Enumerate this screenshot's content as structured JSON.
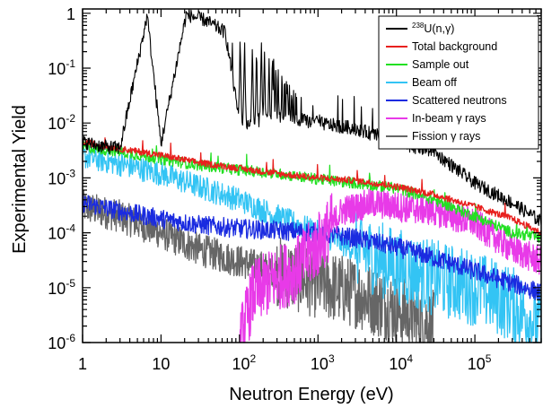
{
  "chart_data": {
    "type": "line",
    "xlabel": "Neutron Energy (eV)",
    "ylabel": "Experimental Yield",
    "xscale": "log",
    "yscale": "log",
    "xlim": [
      1,
      700000
    ],
    "ylim": [
      1e-06,
      1.2
    ],
    "x_tick_labels": [
      {
        "value": 1,
        "base": "1",
        "exp": ""
      },
      {
        "value": 10,
        "base": "10",
        "exp": ""
      },
      {
        "value": 100,
        "base": "10",
        "exp": "2"
      },
      {
        "value": 1000,
        "base": "10",
        "exp": "3"
      },
      {
        "value": 10000,
        "base": "10",
        "exp": "4"
      },
      {
        "value": 100000,
        "base": "10",
        "exp": "5"
      }
    ],
    "y_tick_labels": [
      {
        "value": 1,
        "base": "1",
        "exp": ""
      },
      {
        "value": 0.1,
        "base": "10",
        "exp": "-1"
      },
      {
        "value": 0.01,
        "base": "10",
        "exp": "-2"
      },
      {
        "value": 0.001,
        "base": "10",
        "exp": "-3"
      },
      {
        "value": 0.0001,
        "base": "10",
        "exp": "-4"
      },
      {
        "value": 1e-05,
        "base": "10",
        "exp": "-5"
      },
      {
        "value": 1e-06,
        "base": "10",
        "exp": "-6"
      }
    ],
    "legend_position": "top-right",
    "grid": false,
    "series": [
      {
        "key": "capture",
        "name_sup": "238",
        "name": "U(n,γ)",
        "color": "#000000",
        "x": [
          1,
          2,
          3,
          6.67,
          10,
          20.9,
          36.7,
          66,
          102,
          200,
          500,
          1000,
          3000,
          10000,
          30000,
          100000,
          300000,
          700000
        ],
        "y": [
          0.0045,
          0.0037,
          0.0035,
          0.9,
          0.0042,
          0.95,
          0.75,
          0.45,
          0.009,
          0.012,
          0.012,
          0.01,
          0.008,
          0.0045,
          0.003,
          0.0008,
          0.00035,
          0.00016
        ]
      },
      {
        "key": "total",
        "name": "Total background",
        "color": "#e8201e",
        "x": [
          1,
          3,
          10,
          30,
          100,
          300,
          1000,
          3000,
          10000,
          30000,
          100000,
          300000,
          700000
        ],
        "y": [
          0.0045,
          0.0034,
          0.0026,
          0.0019,
          0.0015,
          0.0012,
          0.001,
          0.0009,
          0.0007,
          0.0005,
          0.0003,
          0.00018,
          0.0001
        ]
      },
      {
        "key": "sample_out",
        "name": "Sample out",
        "color": "#22e022",
        "x": [
          1,
          3,
          10,
          30,
          100,
          300,
          1000,
          3000,
          10000,
          30000,
          100000,
          300000,
          700000
        ],
        "y": [
          0.0037,
          0.003,
          0.0022,
          0.0017,
          0.0014,
          0.0012,
          0.00095,
          0.0008,
          0.00065,
          0.0004,
          0.0002,
          0.0001,
          8e-05
        ]
      },
      {
        "key": "beam_off",
        "name": "Beam off",
        "color": "#33c4f4",
        "x": [
          1,
          3,
          10,
          30,
          100,
          300,
          1000,
          3000,
          10000,
          30000,
          100000,
          300000,
          700000
        ],
        "y": [
          0.0025,
          0.0018,
          0.0012,
          0.0007,
          0.0004,
          0.0002,
          0.0001,
          5e-05,
          2.5e-05,
          1.5e-05,
          1e-05,
          5e-06,
          2e-06
        ]
      },
      {
        "key": "scattered",
        "name": "Scattered neutrons",
        "color": "#1a2be0",
        "x": [
          1,
          3,
          10,
          30,
          100,
          300,
          1000,
          3000,
          10000,
          30000,
          100000,
          300000,
          700000
        ],
        "y": [
          0.00035,
          0.00025,
          0.00018,
          0.00014,
          0.00012,
          0.00011,
          0.0001,
          8e-05,
          5.5e-05,
          3.5e-05,
          2e-05,
          1.2e-05,
          8e-06
        ]
      },
      {
        "key": "inbeam",
        "name": "In-beam γ rays",
        "color": "#e83ae8",
        "x": [
          100,
          150,
          300,
          500,
          1000,
          2000,
          5000,
          10000,
          30000,
          100000,
          300000,
          700000
        ],
        "y": [
          1e-06,
          8e-06,
          1.5e-05,
          2e-05,
          6e-05,
          0.00025,
          0.00035,
          0.0003,
          0.00025,
          0.00015,
          5e-05,
          3e-05
        ]
      },
      {
        "key": "fission",
        "name": "Fission γ rays",
        "color": "#666666",
        "x": [
          1,
          3,
          10,
          30,
          100,
          300,
          1000,
          3000,
          10000,
          30000
        ],
        "y": [
          0.0003,
          0.0002,
          0.0001,
          5e-05,
          3e-05,
          2e-05,
          1.2e-05,
          8e-06,
          4e-06,
          2e-06
        ]
      }
    ]
  }
}
